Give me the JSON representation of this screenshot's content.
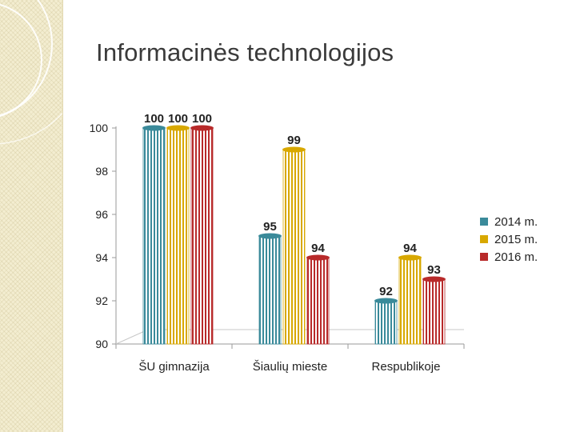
{
  "slide": {
    "title": "Informacinės technologijos"
  },
  "chart_data": {
    "type": "bar",
    "title": "",
    "xlabel": "",
    "ylabel": "",
    "categories": [
      "ŠU gimnazija",
      "Šiaulių mieste",
      "Respublikoje"
    ],
    "series": [
      {
        "name": "2014 m.",
        "values": [
          100,
          95,
          92
        ],
        "color": "#3a8a9a"
      },
      {
        "name": "2015 m.",
        "values": [
          100,
          99,
          94
        ],
        "color": "#d8a800"
      },
      {
        "name": "2016 m.",
        "values": [
          100,
          94,
          93
        ],
        "color": "#b82a2a"
      }
    ],
    "ylim": [
      90,
      100
    ],
    "yticks": [
      90,
      92,
      94,
      96,
      98,
      100
    ],
    "grid": false,
    "legend_position": "right"
  }
}
